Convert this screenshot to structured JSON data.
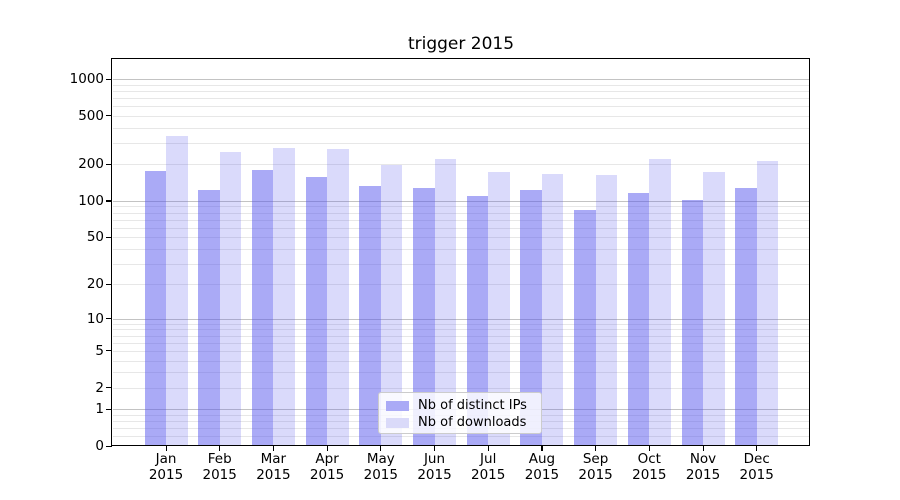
{
  "title": "trigger 2015",
  "chart_data": {
    "type": "bar",
    "title": "trigger 2015",
    "categories": [
      "Jan",
      "Feb",
      "Mar",
      "Apr",
      "May",
      "Jun",
      "Jul",
      "Aug",
      "Sep",
      "Oct",
      "Nov",
      "Dec"
    ],
    "year_label": "2015",
    "series": [
      {
        "name": "Nb of distinct IPs",
        "values": [
          175,
          124,
          180,
          158,
          134,
          129,
          110,
          122,
          84,
          117,
          101,
          128
        ],
        "color": "rgba(85,85,238,0.5)",
        "color_flat": "#aaaaf6"
      },
      {
        "name": "Nb of downloads",
        "values": [
          345,
          252,
          271,
          265,
          197,
          221,
          174,
          168,
          162,
          221,
          174,
          214
        ],
        "color": "rgba(85,85,238,0.22)",
        "color_flat": "#dadaf9"
      }
    ],
    "y_ticks": [
      0,
      1,
      2,
      5,
      10,
      20,
      50,
      100,
      200,
      500,
      1000
    ],
    "y_scale": "log1p",
    "ylim": [
      0,
      1460
    ],
    "xlabel": "",
    "ylabel": "",
    "grid": true,
    "grid_major_color": "#c3c3c3",
    "grid_minor_color": "#e7e7e7",
    "legend_position": "lower center"
  }
}
